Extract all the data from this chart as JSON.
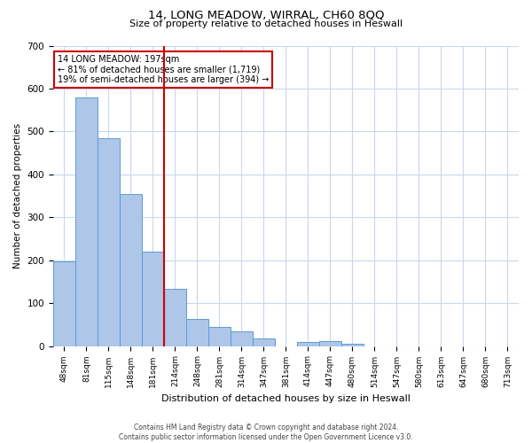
{
  "title": "14, LONG MEADOW, WIRRAL, CH60 8QQ",
  "subtitle": "Size of property relative to detached houses in Heswall",
  "xlabel": "Distribution of detached houses by size in Heswall",
  "ylabel": "Number of detached properties",
  "bin_labels": [
    "48sqm",
    "81sqm",
    "115sqm",
    "148sqm",
    "181sqm",
    "214sqm",
    "248sqm",
    "281sqm",
    "314sqm",
    "347sqm",
    "381sqm",
    "414sqm",
    "447sqm",
    "480sqm",
    "514sqm",
    "547sqm",
    "580sqm",
    "613sqm",
    "647sqm",
    "680sqm",
    "713sqm"
  ],
  "bar_values": [
    197,
    580,
    484,
    354,
    219,
    134,
    63,
    44,
    34,
    17,
    0,
    10,
    12,
    5,
    0,
    0,
    0,
    0,
    0,
    0,
    0
  ],
  "bar_color": "#aec6e8",
  "bar_edge_color": "#5b9bd5",
  "vline_bin_index": 5,
  "vline_color": "#cc0000",
  "annotation_title": "14 LONG MEADOW: 197sqm",
  "annotation_line1": "← 81% of detached houses are smaller (1,719)",
  "annotation_line2": "19% of semi-detached houses are larger (394) →",
  "annotation_box_color": "#ffffff",
  "annotation_box_edge_color": "#cc0000",
  "ylim": [
    0,
    700
  ],
  "yticks": [
    0,
    100,
    200,
    300,
    400,
    500,
    600,
    700
  ],
  "footer_line1": "Contains HM Land Registry data © Crown copyright and database right 2024.",
  "footer_line2": "Contains public sector information licensed under the Open Government Licence v3.0.",
  "background_color": "#ffffff",
  "grid_color": "#c8d8ec"
}
